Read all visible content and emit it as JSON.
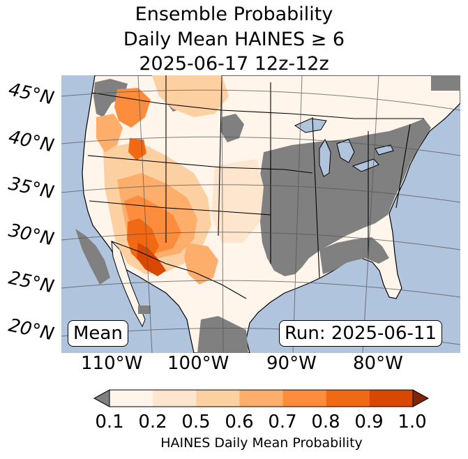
{
  "title": {
    "line1": "Ensemble Probability",
    "line2": "Daily Mean HAINES ≥ 6",
    "line3": "2025-06-17 12z-12z"
  },
  "map": {
    "lat_labels": [
      "45°N",
      "40°N",
      "35°N",
      "30°N",
      "25°N",
      "20°N"
    ],
    "lon_labels": [
      "110°W",
      "100°W",
      "90°W",
      "80°W"
    ],
    "stat_label": "Mean",
    "run_label": "Run: 2025-06-11",
    "colors": {
      "ocean": "#b0c4de",
      "land_low": "#fff5eb",
      "below_min": "#808080",
      "borders": "#000000",
      "graticule": "#555555"
    }
  },
  "colorbar": {
    "label": "HAINES Daily Mean Probability",
    "ticks": [
      "0.1",
      "0.2",
      "0.5",
      "0.6",
      "0.7",
      "0.8",
      "0.9",
      "1.0"
    ],
    "under_color": "#808080",
    "over_color": "#7f2704",
    "bins": [
      "#fff5eb",
      "#fee6ce",
      "#fdd0a2",
      "#fdae6b",
      "#fd8d3c",
      "#f16913",
      "#d94801"
    ]
  }
}
